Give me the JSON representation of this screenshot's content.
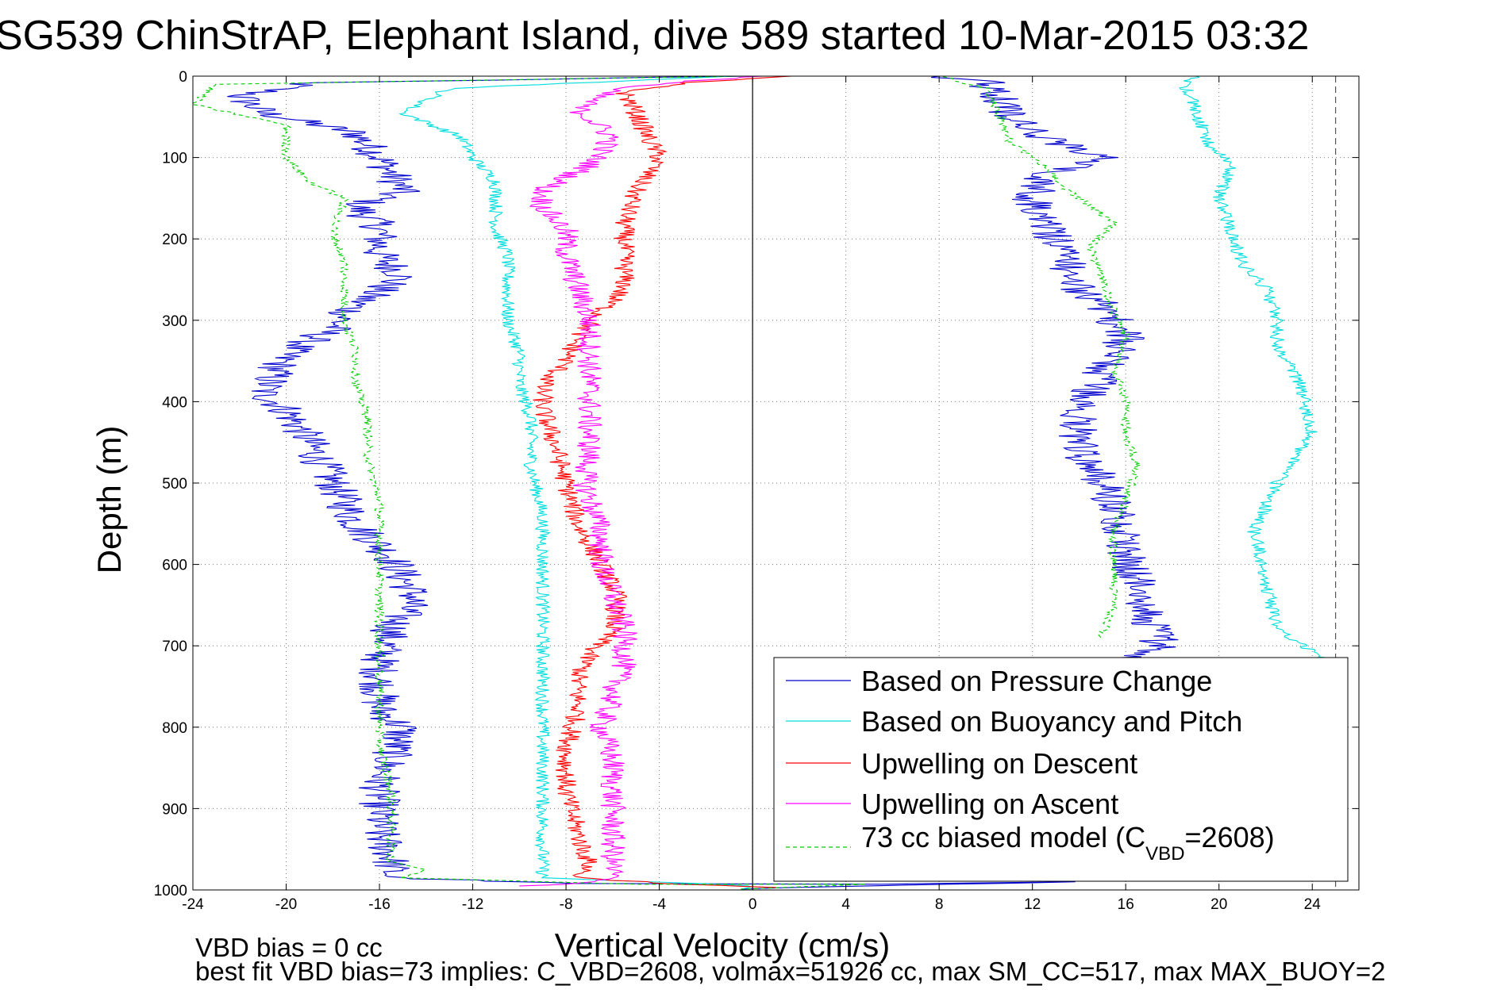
{
  "chart_data": {
    "type": "line",
    "title": "SG539 ChinStrAP, Elephant Island, dive 589 started 10-Mar-2015 03:32",
    "xlabel": "Vertical Velocity (cm/s)",
    "ylabel": "Depth (m)",
    "xlim": [
      -24,
      26
    ],
    "ylim": [
      0,
      1000
    ],
    "y_reversed": true,
    "grid": "dotted",
    "x_ticks": [
      -24,
      -20,
      -16,
      -12,
      -8,
      -4,
      0,
      4,
      8,
      12,
      16,
      20,
      24
    ],
    "y_ticks": [
      0,
      100,
      200,
      300,
      400,
      500,
      600,
      700,
      800,
      900,
      1000
    ],
    "vertical_lines": [
      {
        "x": 0,
        "style": "solid",
        "color": "#000000"
      },
      {
        "x": 25,
        "style": "dashed",
        "color": "#555555"
      }
    ],
    "legend_position": "bottom-right",
    "series": [
      {
        "name": "Based on Pressure Change",
        "color": "#0000cc",
        "noise": 0.9,
        "points": [
          [
            -0.5,
            0
          ],
          [
            -19,
            8
          ],
          [
            -22,
            25
          ],
          [
            -21,
            45
          ],
          [
            -17,
            70
          ],
          [
            -16,
            100
          ],
          [
            -15,
            140
          ],
          [
            -17,
            160
          ],
          [
            -16,
            185
          ],
          [
            -16,
            220
          ],
          [
            -15,
            245
          ],
          [
            -17,
            280
          ],
          [
            -18,
            310
          ],
          [
            -20,
            340
          ],
          [
            -21,
            390
          ],
          [
            -20,
            410
          ],
          [
            -19,
            450
          ],
          [
            -18,
            500
          ],
          [
            -17,
            550
          ],
          [
            -15.5,
            590
          ],
          [
            -14.5,
            640
          ],
          [
            -15.5,
            680
          ],
          [
            -16,
            720
          ],
          [
            -16,
            780
          ],
          [
            -15,
            800
          ],
          [
            -16,
            870
          ],
          [
            -16,
            930
          ],
          [
            -15.5,
            960
          ],
          [
            -15.5,
            985
          ],
          [
            -8,
            992
          ],
          [
            5,
            993
          ],
          [
            13,
            990
          ],
          [
            -0.5,
            999
          ]
        ],
        "ascent_points": [
          [
            16,
            715
          ],
          [
            17.5,
            700
          ],
          [
            17,
            660
          ],
          [
            16.5,
            620
          ],
          [
            16,
            580
          ],
          [
            15.8,
            540
          ],
          [
            15,
            500
          ],
          [
            14,
            460
          ],
          [
            14,
            420
          ],
          [
            14.5,
            390
          ],
          [
            15,
            360
          ],
          [
            16,
            320
          ],
          [
            15,
            280
          ],
          [
            13.5,
            250
          ],
          [
            13.5,
            220
          ],
          [
            12.5,
            180
          ],
          [
            12,
            150
          ],
          [
            12.5,
            120
          ],
          [
            15,
            100
          ],
          [
            12,
            70
          ],
          [
            11,
            50
          ],
          [
            10.5,
            25
          ],
          [
            10,
            8
          ],
          [
            8,
            0
          ]
        ]
      },
      {
        "name": "Based on Buoyancy and Pitch",
        "color": "#00dddd",
        "noise": 0.3,
        "points": [
          [
            -0.5,
            0
          ],
          [
            -13,
            15
          ],
          [
            -15,
            45
          ],
          [
            -12.5,
            75
          ],
          [
            -12,
            100
          ],
          [
            -11,
            130
          ],
          [
            -11,
            160
          ],
          [
            -11,
            190
          ],
          [
            -10.5,
            220
          ],
          [
            -10.5,
            260
          ],
          [
            -10.5,
            300
          ],
          [
            -10,
            340
          ],
          [
            -10,
            380
          ],
          [
            -9.5,
            420
          ],
          [
            -9.5,
            480
          ],
          [
            -9,
            540
          ],
          [
            -9,
            600
          ],
          [
            -9,
            660
          ],
          [
            -9,
            720
          ],
          [
            -9,
            780
          ],
          [
            -9,
            840
          ],
          [
            -9,
            900
          ],
          [
            -9,
            960
          ],
          [
            -9,
            985
          ],
          [
            0,
            995
          ],
          [
            -0.5,
            999
          ]
        ],
        "ascent_points": [
          [
            24.5,
            715
          ],
          [
            22.5,
            680
          ],
          [
            22,
            620
          ],
          [
            21.5,
            560
          ],
          [
            22.5,
            500
          ],
          [
            24,
            440
          ],
          [
            23.5,
            380
          ],
          [
            22.5,
            330
          ],
          [
            22.5,
            300
          ],
          [
            22,
            260
          ],
          [
            21,
            230
          ],
          [
            20.5,
            190
          ],
          [
            20,
            150
          ],
          [
            20.5,
            110
          ],
          [
            19.5,
            80
          ],
          [
            19,
            40
          ],
          [
            18.5,
            10
          ],
          [
            19,
            0
          ]
        ]
      },
      {
        "name": "Upwelling on Descent",
        "color": "#ff0000",
        "noise": 0.45,
        "points": [
          [
            1.5,
            0
          ],
          [
            -3,
            8
          ],
          [
            -5.5,
            20
          ],
          [
            -5,
            45
          ],
          [
            -4.5,
            75
          ],
          [
            -4,
            100
          ],
          [
            -5,
            140
          ],
          [
            -5.5,
            180
          ],
          [
            -5.5,
            220
          ],
          [
            -5.5,
            260
          ],
          [
            -6.5,
            290
          ],
          [
            -7.5,
            320
          ],
          [
            -8,
            350
          ],
          [
            -9,
            380
          ],
          [
            -9,
            410
          ],
          [
            -8.5,
            450
          ],
          [
            -8,
            500
          ],
          [
            -7.5,
            550
          ],
          [
            -6.5,
            600
          ],
          [
            -5.8,
            640
          ],
          [
            -6,
            680
          ],
          [
            -7,
            710
          ],
          [
            -7.5,
            740
          ],
          [
            -7.5,
            780
          ],
          [
            -8,
            830
          ],
          [
            -8,
            880
          ],
          [
            -7.5,
            930
          ],
          [
            -7,
            970
          ],
          [
            -7.5,
            985
          ],
          [
            -3,
            993
          ],
          [
            1,
            997
          ]
        ]
      },
      {
        "name": "Upwelling on Ascent",
        "color": "#ff00ff",
        "noise": 0.55,
        "points": [
          [
            0,
            0
          ],
          [
            -6,
            15
          ],
          [
            -7.5,
            40
          ],
          [
            -6,
            75
          ],
          [
            -7,
            110
          ],
          [
            -9,
            140
          ],
          [
            -9,
            160
          ],
          [
            -8,
            190
          ],
          [
            -8,
            220
          ],
          [
            -7.5,
            260
          ],
          [
            -7,
            300
          ],
          [
            -7,
            340
          ],
          [
            -7,
            380
          ],
          [
            -7,
            420
          ],
          [
            -7,
            460
          ],
          [
            -7.2,
            500
          ],
          [
            -6.5,
            560
          ],
          [
            -6.5,
            600
          ],
          [
            -6,
            640
          ],
          [
            -5.5,
            680
          ],
          [
            -5.5,
            720
          ],
          [
            -6,
            760
          ],
          [
            -6.5,
            800
          ],
          [
            -6,
            840
          ],
          [
            -6,
            880
          ],
          [
            -6,
            920
          ],
          [
            -6,
            960
          ],
          [
            -6,
            985
          ],
          [
            -8,
            993
          ],
          [
            -10,
            995
          ]
        ]
      },
      {
        "name": "73 cc biased model (C_VBD=2608)",
        "color": "#00cc00",
        "dashed": true,
        "noise": 0.2,
        "points": [
          [
            -0.5,
            0
          ],
          [
            -23,
            10
          ],
          [
            -24,
            35
          ],
          [
            -20,
            60
          ],
          [
            -20,
            100
          ],
          [
            -19,
            130
          ],
          [
            -17.5,
            150
          ],
          [
            -18,
            190
          ],
          [
            -17.5,
            230
          ],
          [
            -17.5,
            260
          ],
          [
            -17.5,
            300
          ],
          [
            -17,
            340
          ],
          [
            -17,
            380
          ],
          [
            -16.5,
            420
          ],
          [
            -16.5,
            470
          ],
          [
            -16,
            520
          ],
          [
            -16,
            580
          ],
          [
            -16,
            640
          ],
          [
            -16,
            700
          ],
          [
            -16,
            760
          ],
          [
            -16,
            820
          ],
          [
            -15.5,
            880
          ],
          [
            -15.5,
            940
          ],
          [
            -15.5,
            965
          ],
          [
            -14,
            975
          ],
          [
            -15,
            985
          ],
          [
            -5,
            993
          ],
          [
            5,
            993
          ],
          [
            -0.5,
            999
          ]
        ],
        "ascent_points": [
          [
            15,
            690
          ],
          [
            15.5,
            650
          ],
          [
            15.5,
            600
          ],
          [
            15.5,
            560
          ],
          [
            16,
            520
          ],
          [
            16.5,
            480
          ],
          [
            16,
            440
          ],
          [
            16,
            400
          ],
          [
            15.5,
            360
          ],
          [
            16,
            320
          ],
          [
            15.5,
            290
          ],
          [
            15,
            250
          ],
          [
            14.5,
            210
          ],
          [
            15.5,
            180
          ],
          [
            13.5,
            140
          ],
          [
            12.5,
            110
          ],
          [
            11,
            80
          ],
          [
            10.5,
            40
          ],
          [
            10,
            15
          ],
          [
            8,
            0
          ]
        ]
      }
    ],
    "legend_entries": [
      {
        "label": "Based on Pressure Change",
        "color": "#0000cc",
        "dashed": false
      },
      {
        "label": "Based on Buoyancy and Pitch",
        "color": "#00dddd",
        "dashed": false
      },
      {
        "label": "Upwelling on Descent",
        "color": "#ff0000",
        "dashed": false
      },
      {
        "label": "Upwelling on Ascent",
        "color": "#ff00ff",
        "dashed": false
      },
      {
        "label_main": "73 cc biased model (C",
        "label_sub": "VBD",
        "label_tail": "=2608)",
        "color": "#00cc00",
        "dashed": true
      }
    ],
    "annotations": [
      "VBD bias = 0 cc",
      "best fit VBD bias=73 implies: C_VBD=2608, volmax=51926 cc, max SM_CC=517, max MAX_BUOY=2"
    ]
  }
}
